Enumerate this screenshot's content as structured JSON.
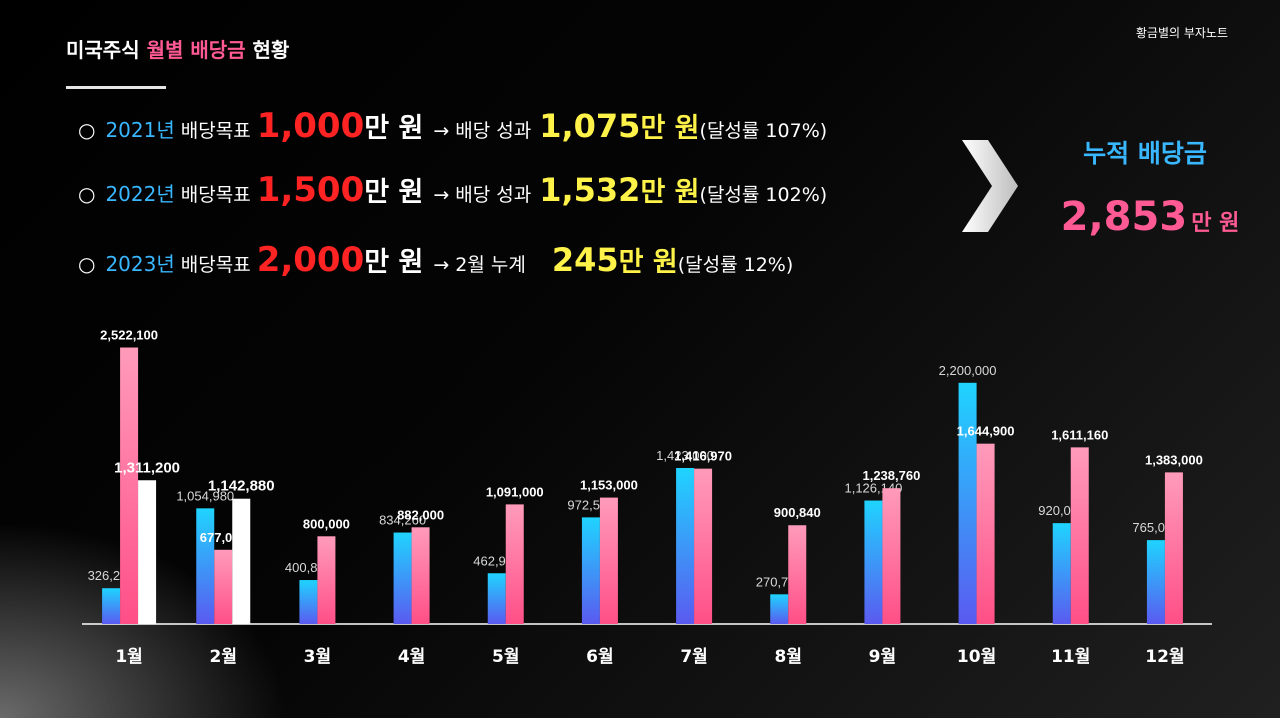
{
  "header": {
    "title_prefix": "미국주식",
    "title_highlight": "월별 배당금",
    "title_suffix": "현황",
    "brand": "황금별의 부자노트"
  },
  "goals": [
    {
      "circle": "○",
      "year": "2021년",
      "label": "배당목표",
      "target": "1,000",
      "target_unit": "만 원",
      "arrow": "→",
      "result_label": "배당 성과",
      "result": "1,075",
      "result_unit": "만 원",
      "rate": "(달성률 107%)"
    },
    {
      "circle": "○",
      "year": "2022년",
      "label": "배당목표",
      "target": "1,500",
      "target_unit": "만 원",
      "arrow": "→",
      "result_label": "배당 성과",
      "result": "1,532",
      "result_unit": "만 원",
      "rate": "(달성률 102%)"
    },
    {
      "circle": "○",
      "year": "2023년",
      "label": "배당목표",
      "target": "2,000",
      "target_unit": "만 원",
      "arrow": "→",
      "result_label": "2월 누계",
      "result": "245",
      "result_unit": "만 원",
      "rate": "(달성률 12%)"
    }
  ],
  "cumulative": {
    "label": "누적 배당금",
    "value": "2,853",
    "unit": "만 원"
  },
  "colors": {
    "blue": "#2fc8ff",
    "pink": "#ff5a93",
    "white": "#ffffff",
    "title_pink": "#ff5a93",
    "target_red": "#ff2323",
    "result_yellow": "#fff34a"
  },
  "chart_data": {
    "type": "bar",
    "categories": [
      "1월",
      "2월",
      "3월",
      "4월",
      "5월",
      "6월",
      "7월",
      "8월",
      "9월",
      "10월",
      "11월",
      "12월"
    ],
    "series": [
      {
        "values": [
          326290,
          1054980,
          400830,
          834260,
          462900,
          972530,
          1423000,
          270710,
          1126140,
          2200000,
          920000,
          765000
        ],
        "labels": [
          "326,290",
          "1,054,980",
          "400,830",
          "834,260",
          "462,900",
          "972,530",
          "1,423,000",
          "270,710",
          "1,126,140",
          "2,200,000",
          "920,000",
          "765,000"
        ]
      },
      {
        "values": [
          2522100,
          677000,
          800000,
          882000,
          1091000,
          1153000,
          1416970,
          900840,
          1238760,
          1644900,
          1611160,
          1383000
        ],
        "labels": [
          "2,522,100",
          "677,000",
          "800,000",
          "882,000",
          "1,091,000",
          "1,153,000",
          "1,416,970",
          "900,840",
          "1,238,760",
          "1,644,900",
          "1,611,160",
          "1,383,000"
        ]
      },
      {
        "values": [
          1311200,
          1142880,
          null,
          null,
          null,
          null,
          null,
          null,
          null,
          null,
          null,
          null
        ],
        "labels": [
          "1,311,200",
          "1,142,880",
          null,
          null,
          null,
          null,
          null,
          null,
          null,
          null,
          null,
          null
        ]
      }
    ],
    "ylim": [
      0,
      2700000
    ],
    "grid": false,
    "legend": "none"
  }
}
